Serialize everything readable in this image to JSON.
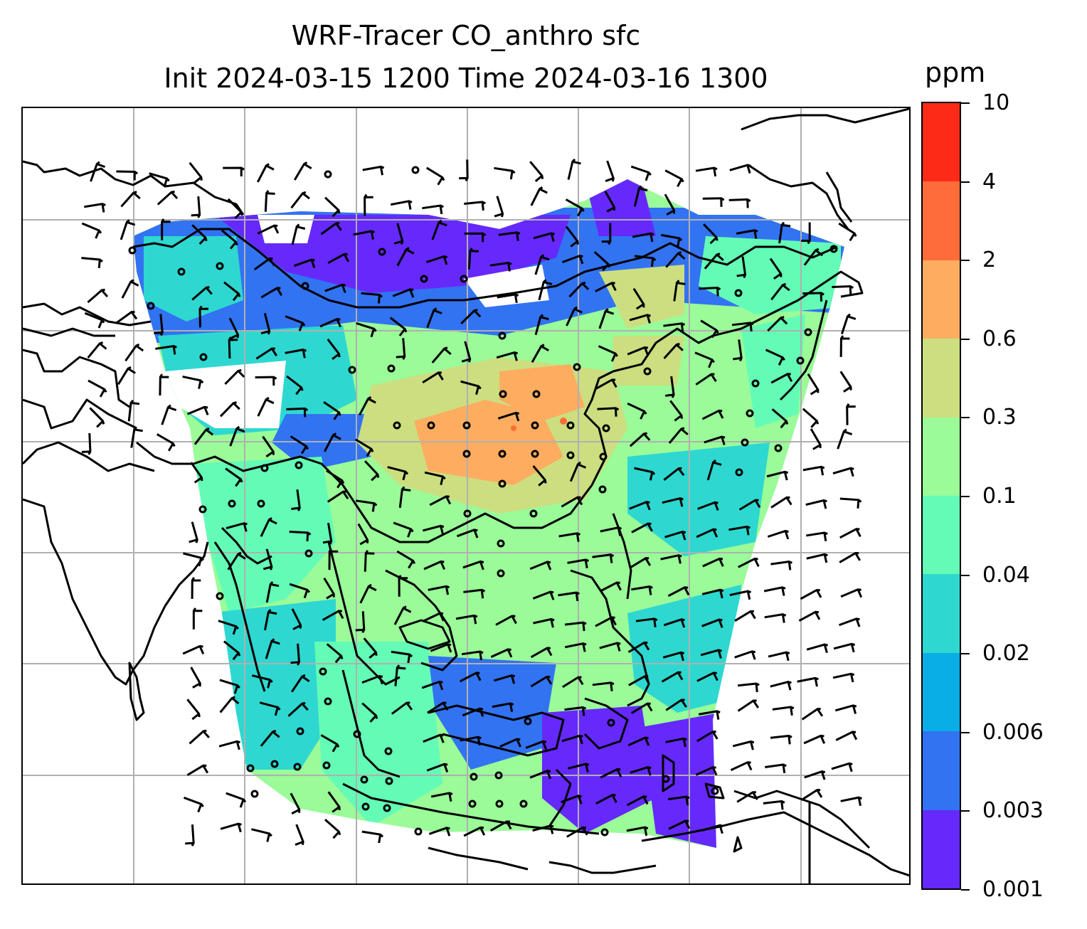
{
  "title": {
    "line1": "WRF-Tracer CO_anthro sfc",
    "line2": "Init 2024-03-15 1200 Time 2024-03-16 1300"
  },
  "colorbar": {
    "unit": "ppm",
    "levels": [
      "0.001",
      "0.003",
      "0.006",
      "0.02",
      "0.04",
      "0.1",
      "0.3",
      "0.6",
      "2",
      "4",
      "10"
    ],
    "colors": [
      "#6629fb",
      "#3273f2",
      "#0aaee6",
      "#2ed8d0",
      "#64fbb6",
      "#9afb98",
      "#ccde80",
      "#fead60",
      "#fe6d39",
      "#fd2a17"
    ]
  },
  "map": {
    "type": "filled-contour map with wind barbs and coastlines",
    "gridlines": true,
    "land_outline_color": "#000000",
    "field": "CO_anthro surface concentration (ppm)",
    "features": [
      "coastlines",
      "country borders",
      "wind barbs",
      "calm-wind circles"
    ]
  }
}
